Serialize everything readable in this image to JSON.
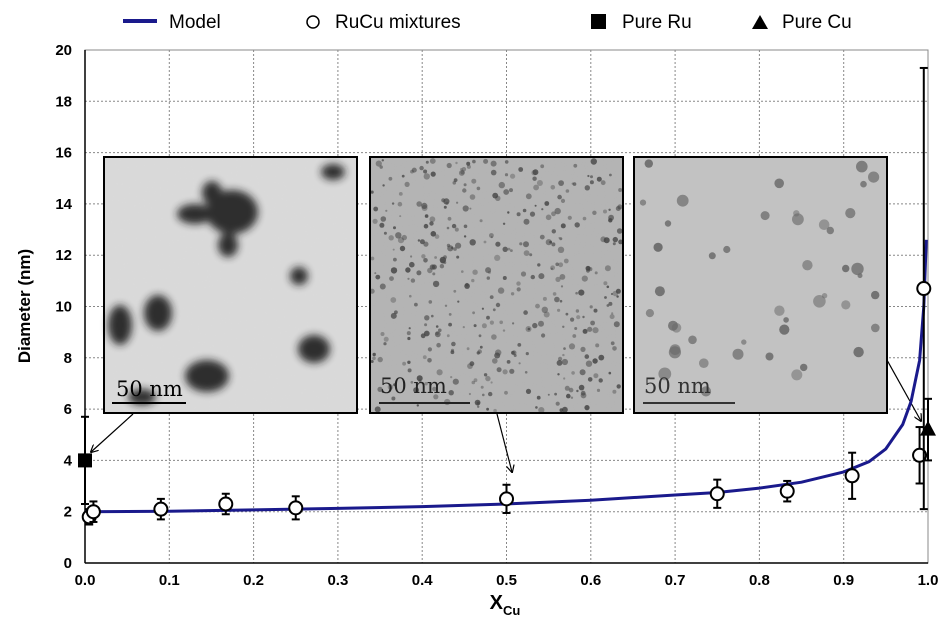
{
  "chart_data": {
    "type": "scatter",
    "xlabel_main": "X",
    "xlabel_sub": "Cu",
    "ylabel": "Diameter (nm)",
    "xlim": [
      0,
      1
    ],
    "ylim": [
      0,
      20
    ],
    "x_ticks": [
      "0.0",
      "0.1",
      "0.2",
      "0.3",
      "0.4",
      "0.5",
      "0.6",
      "0.7",
      "0.8",
      "0.9",
      "1.0"
    ],
    "y_ticks": [
      "0",
      "2",
      "4",
      "6",
      "8",
      "10",
      "12",
      "14",
      "16",
      "18",
      "20"
    ],
    "grid": true,
    "legend": {
      "position": "top",
      "entries": [
        {
          "label": "Model",
          "marker": "line",
          "color": "#1a1a8c"
        },
        {
          "label": "RuCu mixtures",
          "marker": "open-circle",
          "color": "#000000"
        },
        {
          "label": "Pure Ru",
          "marker": "filled-square",
          "color": "#000000"
        },
        {
          "label": "Pure Cu",
          "marker": "filled-triangle",
          "color": "#000000"
        }
      ]
    },
    "series": [
      {
        "name": "RuCu mixtures",
        "marker": "open-circle",
        "points": [
          {
            "x": 0.005,
            "y": 1.8,
            "err": 0.3
          },
          {
            "x": 0.01,
            "y": 2.0,
            "err": 0.4
          },
          {
            "x": 0.09,
            "y": 2.1,
            "err": 0.4
          },
          {
            "x": 0.167,
            "y": 2.3,
            "err": 0.4
          },
          {
            "x": 0.25,
            "y": 2.15,
            "err": 0.45
          },
          {
            "x": 0.5,
            "y": 2.5,
            "err": 0.55
          },
          {
            "x": 0.75,
            "y": 2.7,
            "err": 0.55
          },
          {
            "x": 0.833,
            "y": 2.8,
            "err": 0.4
          },
          {
            "x": 0.91,
            "y": 3.4,
            "err": 0.9
          },
          {
            "x": 0.99,
            "y": 4.2,
            "err": 1.1
          },
          {
            "x": 0.995,
            "y": 10.7,
            "err": 8.6
          }
        ]
      },
      {
        "name": "Pure Ru",
        "marker": "filled-square",
        "points": [
          {
            "x": 0.0,
            "y": 4.0,
            "err": 1.7
          }
        ]
      },
      {
        "name": "Pure Cu",
        "marker": "filled-triangle",
        "points": [
          {
            "x": 1.0,
            "y": 5.2,
            "err": 1.2
          }
        ]
      },
      {
        "name": "Model",
        "marker": "line",
        "color": "#1a1a8c",
        "points": [
          {
            "x": 0.0,
            "y": 2.0
          },
          {
            "x": 0.1,
            "y": 2.02
          },
          {
            "x": 0.2,
            "y": 2.07
          },
          {
            "x": 0.3,
            "y": 2.13
          },
          {
            "x": 0.4,
            "y": 2.2
          },
          {
            "x": 0.5,
            "y": 2.3
          },
          {
            "x": 0.6,
            "y": 2.45
          },
          {
            "x": 0.7,
            "y": 2.65
          },
          {
            "x": 0.75,
            "y": 2.75
          },
          {
            "x": 0.8,
            "y": 2.92
          },
          {
            "x": 0.85,
            "y": 3.15
          },
          {
            "x": 0.9,
            "y": 3.55
          },
          {
            "x": 0.93,
            "y": 3.95
          },
          {
            "x": 0.95,
            "y": 4.45
          },
          {
            "x": 0.97,
            "y": 5.4
          },
          {
            "x": 0.98,
            "y": 6.3
          },
          {
            "x": 0.99,
            "y": 7.9
          },
          {
            "x": 0.995,
            "y": 10.0
          },
          {
            "x": 0.998,
            "y": 12.6
          }
        ]
      }
    ],
    "insets": [
      {
        "scale_label": "50 nm",
        "points_to": {
          "x": 0.0,
          "y": 4.0
        },
        "style": "dense-clusters"
      },
      {
        "scale_label": "50 nm",
        "points_to": {
          "x": 0.5,
          "y": 2.5
        },
        "style": "fine-particles"
      },
      {
        "scale_label": "50 nm",
        "points_to": {
          "x": 0.995,
          "y": 5.0
        },
        "style": "sparse-particles"
      }
    ]
  }
}
